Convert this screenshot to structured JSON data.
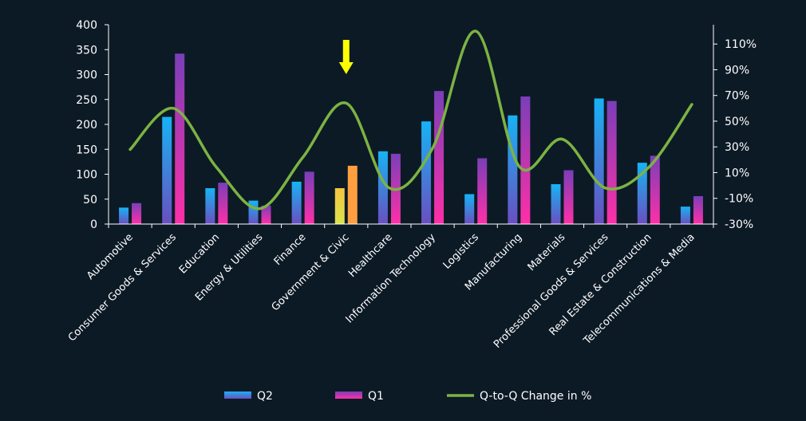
{
  "chart_data": {
    "type": "bar",
    "categories": [
      "Automotive",
      "Consumer Goods & Services",
      "Education",
      "Energy & Utilities",
      "Finance",
      "Government & Civic",
      "Healthcare",
      "Information Technology",
      "Logistics",
      "Manufacturing",
      "Materials",
      "Professional Goods & Services",
      "Real Estate & Construction",
      "Telecommunications & Media"
    ],
    "series": [
      {
        "name": "Q2",
        "axis": "left",
        "kind": "bar",
        "values": [
          33,
          215,
          72,
          47,
          85,
          72,
          146,
          206,
          60,
          218,
          80,
          252,
          123,
          35
        ]
      },
      {
        "name": "Q1",
        "axis": "left",
        "kind": "bar",
        "values": [
          42,
          342,
          83,
          37,
          105,
          117,
          141,
          267,
          132,
          256,
          108,
          247,
          137,
          56
        ]
      },
      {
        "name": "Q-to-Q Change in %",
        "axis": "right",
        "kind": "line",
        "values": [
          28,
          60,
          14,
          -18,
          22,
          64,
          -2,
          29,
          120,
          15,
          36,
          -2,
          14,
          63
        ]
      }
    ],
    "highlight_category": "Government & Civic",
    "left_axis": {
      "min": 0,
      "max": 400,
      "ticks": [
        "0",
        "50",
        "100",
        "150",
        "200",
        "250",
        "300",
        "350",
        "400"
      ]
    },
    "right_axis": {
      "min": -30,
      "max": 125,
      "tick_values": [
        -30,
        -10,
        10,
        30,
        50,
        70,
        90,
        110
      ],
      "ticks": [
        "-30%",
        "-10%",
        "10%",
        "30%",
        "50%",
        "70%",
        "90%",
        "110%"
      ]
    },
    "grid": false,
    "legend_position": "bottom",
    "colors": {
      "background": "#0c1a26",
      "q2_top": "#17b3f5",
      "q2_bottom": "#6a4fc0",
      "q1_top": "#7a3fb8",
      "q1_bottom": "#ff2fa8",
      "line": "#7cb342",
      "highlight_q2_top": "#f5c542",
      "highlight_q2_bottom": "#d9e44a",
      "highlight_q1": "#ff9f3f",
      "arrow": "#ffff00",
      "axis": "#ffffff"
    }
  }
}
